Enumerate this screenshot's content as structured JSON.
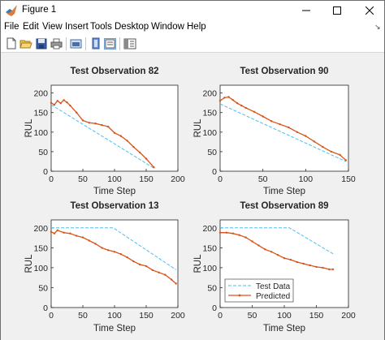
{
  "window": {
    "title": "Figure 1"
  },
  "menu": {
    "items": [
      "File",
      "Edit",
      "View",
      "Insert",
      "Tools",
      "Desktop",
      "Window",
      "Help"
    ]
  },
  "toolbar": {
    "icons": [
      "new-figure-icon",
      "open-file-icon",
      "save-icon",
      "print-icon",
      "link-plot-icon",
      "insert-colorbar-icon",
      "insert-legend-icon",
      "property-inspector-icon"
    ]
  },
  "colors": {
    "test_data": "#4DBEEE",
    "predicted": "#D95319"
  },
  "legend": {
    "test_label": "Test Data",
    "pred_label": "Predicted"
  },
  "chart_data": [
    {
      "type": "line",
      "title": "Test Observation 82",
      "xlabel": "Time Step",
      "ylabel": "RUL",
      "xlim": [
        0,
        200
      ],
      "ylim": [
        0,
        220
      ],
      "xticks": [
        0,
        50,
        100,
        150,
        200
      ],
      "yticks": [
        0,
        50,
        100,
        150,
        200
      ],
      "series": [
        {
          "name": "Test Data",
          "style": "dashed",
          "x": [
            0,
            162
          ],
          "y": [
            170,
            8
          ]
        },
        {
          "name": "Predicted",
          "style": "solid-markers",
          "x": [
            0,
            5,
            10,
            15,
            20,
            25,
            30,
            40,
            50,
            60,
            70,
            80,
            90,
            100,
            110,
            120,
            130,
            140,
            150,
            162
          ],
          "y": [
            175,
            170,
            180,
            174,
            182,
            176,
            168,
            150,
            130,
            124,
            122,
            118,
            114,
            98,
            90,
            78,
            62,
            48,
            32,
            10
          ]
        }
      ]
    },
    {
      "type": "line",
      "title": "Test Observation 90",
      "xlabel": "Time Step",
      "ylabel": "RUL",
      "xlim": [
        0,
        150
      ],
      "ylim": [
        0,
        220
      ],
      "xticks": [
        0,
        50,
        100,
        150
      ],
      "yticks": [
        0,
        50,
        100,
        150,
        200
      ],
      "series": [
        {
          "name": "Test Data",
          "style": "dashed",
          "x": [
            0,
            147
          ],
          "y": [
            172,
            25
          ]
        },
        {
          "name": "Predicted",
          "style": "solid-markers",
          "x": [
            0,
            5,
            10,
            15,
            20,
            25,
            30,
            40,
            50,
            60,
            70,
            80,
            90,
            100,
            110,
            120,
            130,
            140,
            147
          ],
          "y": [
            180,
            188,
            190,
            182,
            174,
            168,
            162,
            152,
            140,
            128,
            120,
            112,
            100,
            90,
            76,
            62,
            50,
            42,
            28
          ]
        }
      ]
    },
    {
      "type": "line",
      "title": "Test Observation 13",
      "xlabel": "Time Step",
      "ylabel": "RUL",
      "xlim": [
        0,
        200
      ],
      "ylim": [
        0,
        220
      ],
      "xticks": [
        0,
        50,
        100,
        150,
        200
      ],
      "yticks": [
        0,
        50,
        100,
        150,
        200
      ],
      "series": [
        {
          "name": "Test Data",
          "style": "dashed",
          "x": [
            0,
            98,
            197
          ],
          "y": [
            200,
            200,
            95
          ]
        },
        {
          "name": "Predicted",
          "style": "solid-markers",
          "x": [
            0,
            5,
            10,
            20,
            30,
            40,
            50,
            60,
            70,
            80,
            90,
            100,
            110,
            120,
            130,
            140,
            150,
            160,
            170,
            180,
            190,
            197
          ],
          "y": [
            190,
            186,
            194,
            188,
            186,
            180,
            176,
            168,
            160,
            150,
            144,
            140,
            134,
            126,
            116,
            108,
            104,
            94,
            88,
            82,
            70,
            60
          ]
        }
      ]
    },
    {
      "type": "line",
      "title": "Test Observation 89",
      "xlabel": "Time Step",
      "ylabel": "RUL",
      "xlim": [
        0,
        200
      ],
      "ylim": [
        0,
        220
      ],
      "xticks": [
        0,
        50,
        100,
        150,
        200
      ],
      "yticks": [
        0,
        50,
        100,
        150,
        200
      ],
      "legend": "bottom-left",
      "series": [
        {
          "name": "Test Data",
          "style": "dashed",
          "x": [
            0,
            108,
            176
          ],
          "y": [
            200,
            200,
            135
          ]
        },
        {
          "name": "Predicted",
          "style": "solid-markers",
          "x": [
            0,
            10,
            20,
            30,
            40,
            50,
            60,
            70,
            80,
            90,
            100,
            110,
            120,
            130,
            140,
            150,
            160,
            170,
            176
          ],
          "y": [
            188,
            188,
            186,
            182,
            176,
            166,
            156,
            146,
            140,
            132,
            124,
            120,
            114,
            110,
            106,
            102,
            100,
            96,
            96
          ]
        }
      ]
    }
  ]
}
